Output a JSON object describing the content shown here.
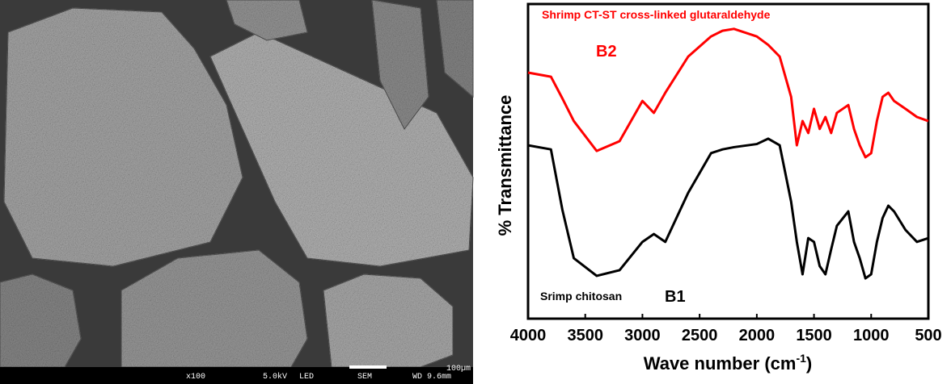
{
  "sem_image": {
    "magnification": "x100",
    "voltage": "5.0kV",
    "detector": "LED",
    "mode": "SEM",
    "working_distance": "WD 9.6mm",
    "scale": "100µm"
  },
  "chart_data": {
    "type": "line",
    "ylabel": "% Transmittance",
    "xlabel": {
      "text": "Wave number (cm",
      "superscript": "-1",
      "end": ")"
    },
    "x": [
      4000,
      3800,
      3700,
      3600,
      3400,
      3200,
      3000,
      2900,
      2800,
      2600,
      2400,
      2300,
      2200,
      2000,
      1900,
      1800,
      1700,
      1650,
      1600,
      1550,
      1500,
      1450,
      1400,
      1350,
      1300,
      1200,
      1150,
      1100,
      1050,
      1000,
      950,
      900,
      850,
      800,
      700,
      600,
      500
    ],
    "xlim": [
      4000,
      500
    ],
    "xticks": [
      4000,
      3500,
      3000,
      2500,
      2000,
      1500,
      1000,
      500
    ],
    "ylim": [
      0,
      100
    ],
    "series": [
      {
        "name": "Shrimp CT-ST cross-linked glutaraldehyde",
        "label": "B2",
        "color": "#ff0000",
        "values": [
          78.2,
          76.9,
          70,
          62.8,
          53.3,
          56.4,
          69.2,
          65.4,
          71.8,
          83.3,
          89.7,
          91.5,
          92.1,
          89.7,
          87,
          83.3,
          70.5,
          55.1,
          62.8,
          59.0,
          66.7,
          60.3,
          64.1,
          59.0,
          65.4,
          67.9,
          60.3,
          55.1,
          51.3,
          52.6,
          62.8,
          70.5,
          71.8,
          69.2,
          66.7,
          64.1,
          62.8
        ]
      },
      {
        "name": "Srimp chitosan",
        "label": "B1",
        "color": "#000000",
        "values": [
          55.1,
          53.8,
          34.6,
          19.2,
          13.6,
          15.4,
          24.4,
          26.9,
          24.4,
          40,
          52.6,
          53.8,
          54.5,
          55.5,
          57.2,
          55.1,
          37.2,
          24.4,
          14.1,
          25.6,
          24.4,
          16.7,
          14.1,
          22,
          29.5,
          34.1,
          24.4,
          19.2,
          12.8,
          14.1,
          24.4,
          32,
          35.9,
          34.1,
          28.2,
          24.4,
          25.6
        ]
      }
    ]
  }
}
